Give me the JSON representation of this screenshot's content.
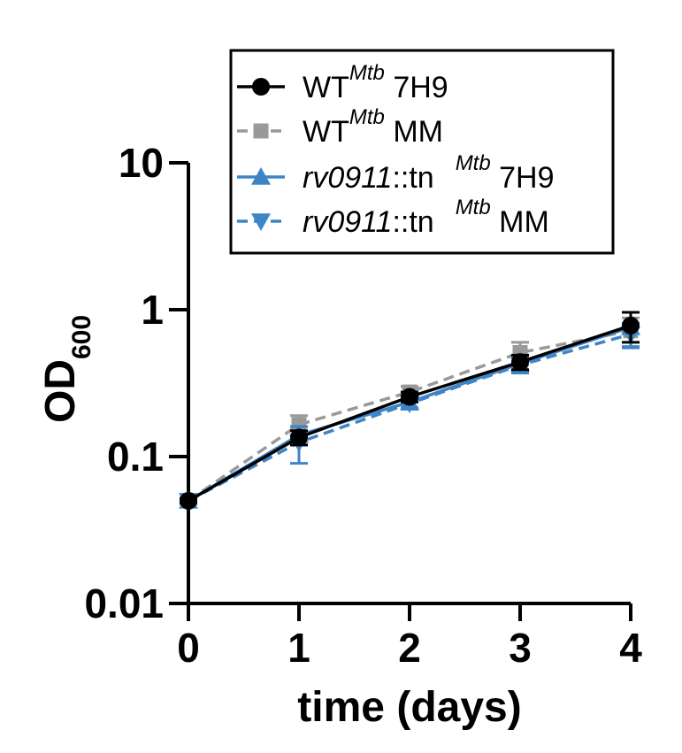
{
  "chart_data": {
    "type": "line",
    "xlabel": "time (days)",
    "ylabel_main": "OD",
    "ylabel_sub": "600",
    "yscale": "log",
    "xlim": [
      0,
      4
    ],
    "ylim": [
      0.01,
      10
    ],
    "x_ticks": [
      "0",
      "1",
      "2",
      "3",
      "4"
    ],
    "y_ticks": [
      "0.01",
      "0.1",
      "1",
      "10"
    ],
    "x": [
      0,
      1,
      2,
      3,
      4
    ],
    "series": [
      {
        "key": "wt_7h9",
        "legend_main": "WT",
        "legend_sup": "Mtb",
        "legend_tail": " 7H9",
        "color": "#000000",
        "dashed": false,
        "marker": "circle",
        "values": [
          0.05,
          0.135,
          0.255,
          0.44,
          0.78
        ],
        "err": [
          0.002,
          0.015,
          0.02,
          0.05,
          0.18
        ]
      },
      {
        "key": "wt_mm",
        "legend_main": "WT",
        "legend_sup": "Mtb",
        "legend_tail": " MM",
        "color": "#999999",
        "dashed": true,
        "marker": "square",
        "values": [
          0.05,
          0.165,
          0.275,
          0.51,
          0.72
        ],
        "err": [
          0.002,
          0.025,
          0.025,
          0.09,
          0.16
        ]
      },
      {
        "key": "tn_7h9",
        "legend_main": "rv0911",
        "legend_mid": "::tn",
        "legend_sup": "Mtb",
        "legend_tail": " 7H9",
        "color": "#3D85C6",
        "dashed": false,
        "marker": "triangle-up",
        "values": [
          0.05,
          0.14,
          0.235,
          0.43,
          0.76
        ],
        "err": [
          0.002,
          0.02,
          0.02,
          0.05,
          0.2
        ]
      },
      {
        "key": "tn_mm",
        "legend_main": "rv0911",
        "legend_mid": "::tn",
        "legend_sup": "Mtb",
        "legend_tail": " MM",
        "color": "#3D85C6",
        "dashed": true,
        "marker": "triangle-down",
        "values": [
          0.05,
          0.125,
          0.23,
          0.42,
          0.68
        ],
        "err": [
          0.002,
          0.035,
          0.02,
          0.05,
          0.13
        ]
      }
    ]
  }
}
